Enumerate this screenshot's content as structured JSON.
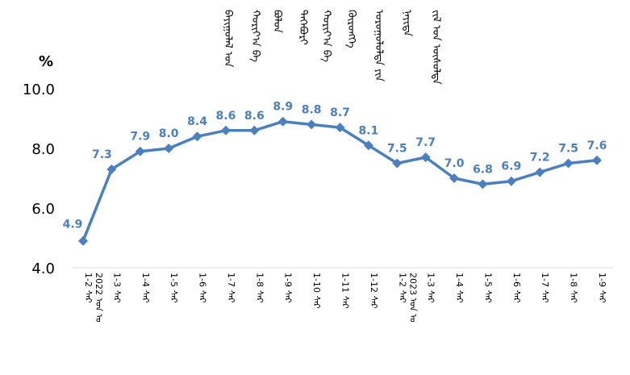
{
  "chart_data": {
    "type": "line",
    "title_vertical": [
      "ᠪᠠᠶᠢᠭᠤᠯᠠᠯ ᠤᠨ",
      "ᠬᠤᠷᠢᠶ᠎ᠠ ᠪᠠ",
      "ᠪᠤᠯᠤᠨ",
      "ᠳᠡᠭᠡᠪᠦᠷᠢ",
      "ᠬᠤᠷᠢᠶ᠎ᠠ ᠪᠠ",
      "ᠬᠥᠷᠥᠩᠭᠡ",
      "ᠤᠷᠤᠭᠤᠯᠤᠯᠲᠠ ᠶᠢᠨ",
      "ᠨᠡᠶᠢᠲᠡ",
      "ᠵᠢᠯ ᠤᠨ ᠥᠰᠦᠯᠲᠡ"
    ],
    "ylabel": "%",
    "ylim": [
      4.0,
      10.0
    ],
    "yticks": [
      "4.0",
      "6.0",
      "8.0",
      "10.0"
    ],
    "categories": [
      "1-2 ᠰᠠᠷ\n2022 ᠣᠨ ᠤ",
      "1-3 ᠰᠠᠷ",
      "1-4 ᠰᠠᠷ",
      "1-5 ᠰᠠᠷ",
      "1-6 ᠰᠠᠷ",
      "1-7 ᠰᠠᠷ",
      "1-8 ᠰᠠᠷ",
      "1-9 ᠰᠠᠷ",
      "1-10 ᠰᠠᠷ",
      "1-11 ᠰᠠᠷ",
      "1-12 ᠰᠠᠷ",
      "1-2 ᠰᠠᠷ\n2023 ᠣᠨ ᠤ",
      "1-3 ᠰᠠᠷ",
      "1-4 ᠰᠠᠷ",
      "1-5 ᠰᠠᠷ",
      "1-6 ᠰᠠᠷ",
      "1-7 ᠰᠠᠷ",
      "1-8 ᠰᠠᠷ",
      "1-9 ᠰᠠᠷ"
    ],
    "values": [
      4.9,
      7.3,
      7.9,
      8.0,
      8.4,
      8.6,
      8.6,
      8.9,
      8.8,
      8.7,
      8.1,
      7.5,
      7.7,
      7.0,
      6.8,
      6.9,
      7.2,
      7.5,
      7.6
    ],
    "value_labels": [
      "4.9",
      "7.3",
      "7.9",
      "8.0",
      "8.4",
      "8.6",
      "8.6",
      "8.9",
      "8.8",
      "8.7",
      "8.1",
      "7.5",
      "7.7",
      "7.0",
      "6.8",
      "6.9",
      "7.2",
      "7.5",
      "7.6"
    ],
    "series_color": "#4a7fc1",
    "grid": false,
    "legend": "none"
  }
}
